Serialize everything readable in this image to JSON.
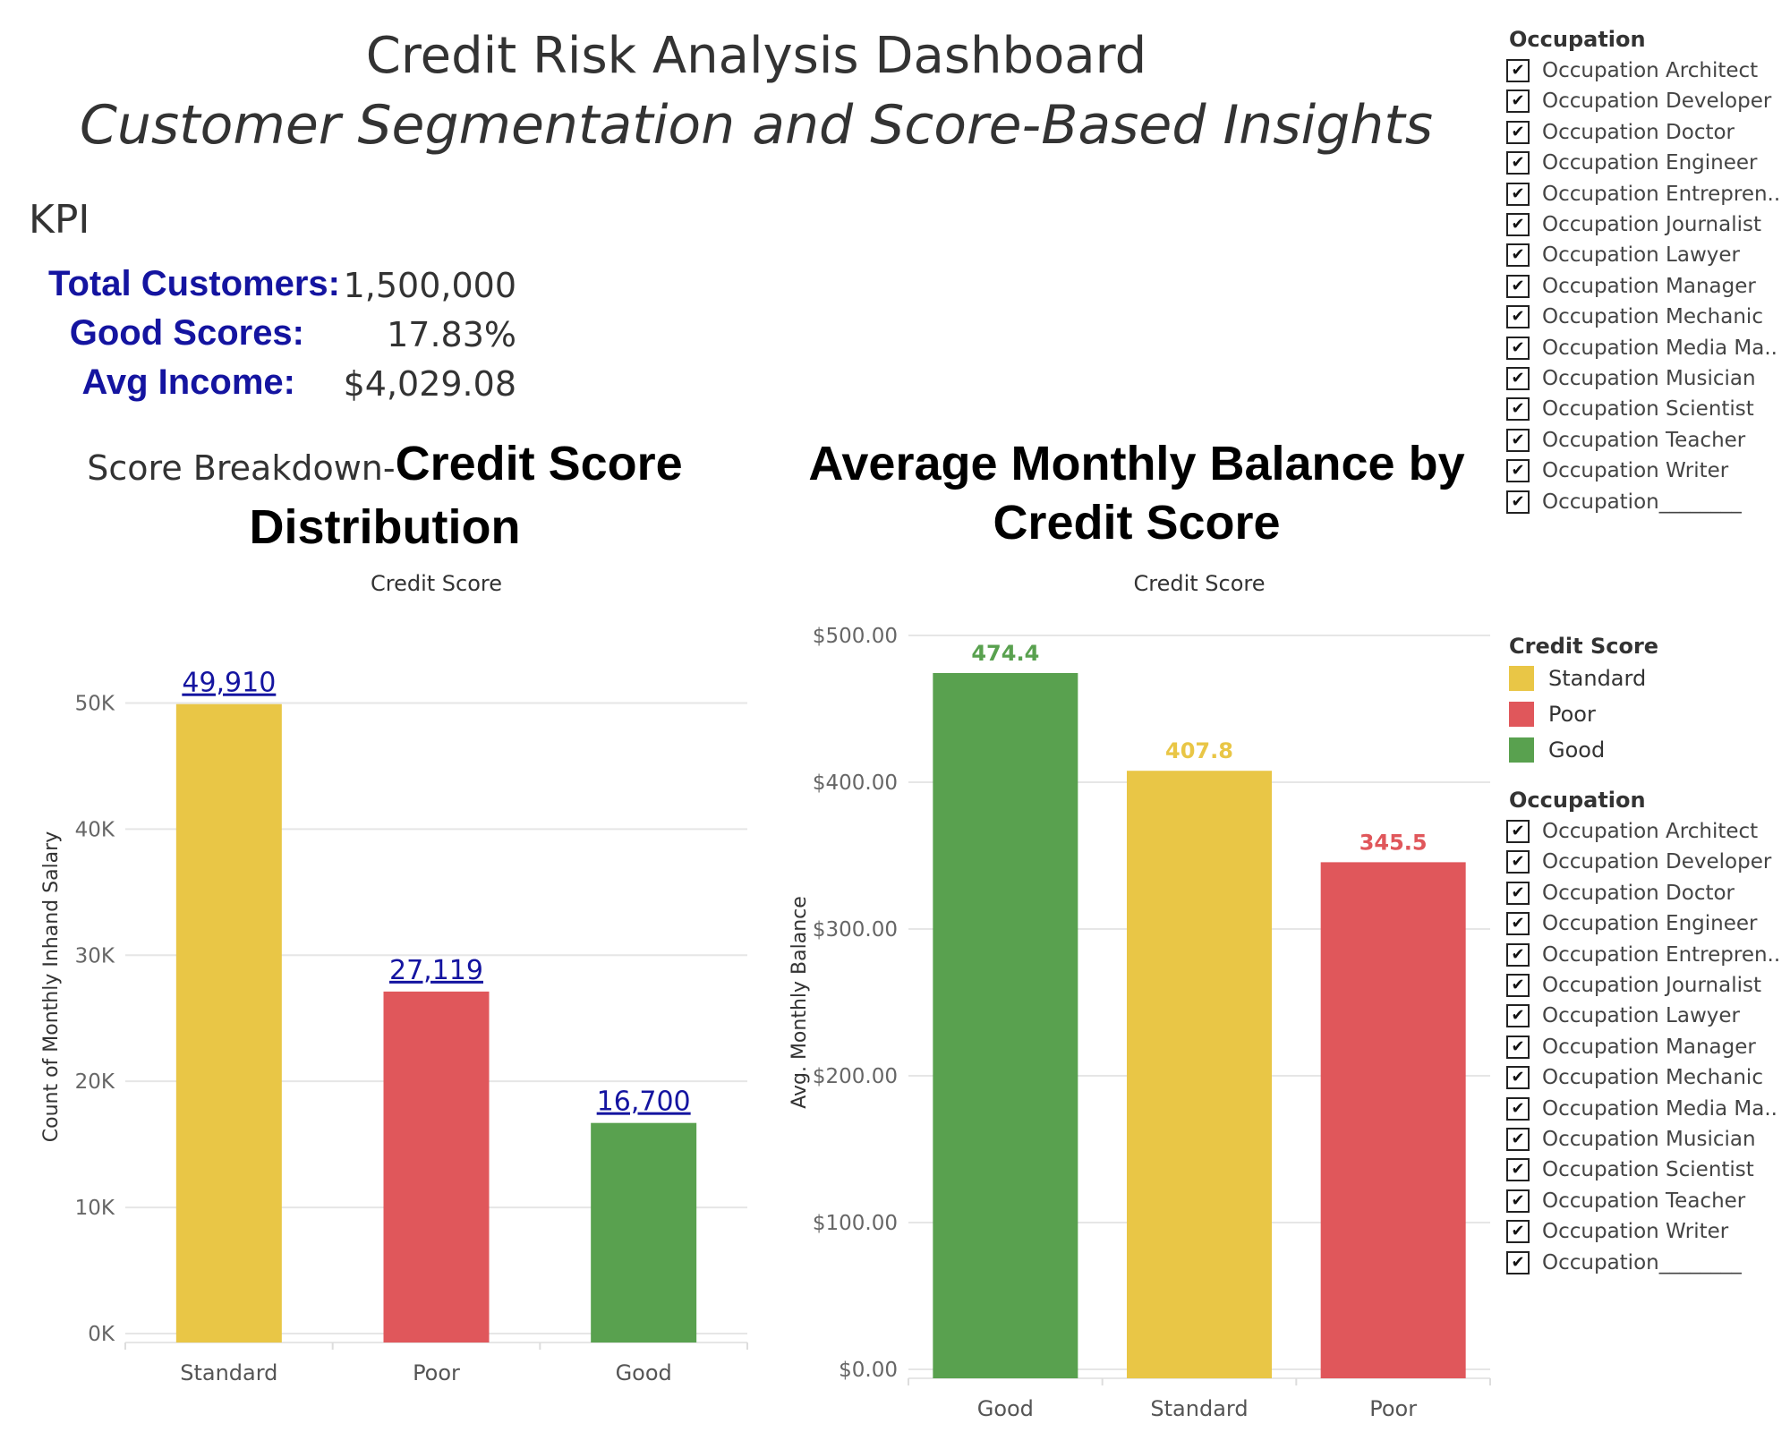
{
  "header": {
    "title": "Credit Risk Analysis Dashboard",
    "subtitle": "Customer Segmentation and Score-Based Insights"
  },
  "kpi": {
    "heading": "KPI",
    "items": [
      {
        "label": "Total Customers:",
        "value": "1,500,000"
      },
      {
        "label": "Good Scores:",
        "value": "17.83%"
      },
      {
        "label": "Avg Income:",
        "value": "$4,029.08"
      }
    ]
  },
  "colors": {
    "Standard": "#e9c646",
    "Poor": "#e0575b",
    "Good": "#59a14f",
    "data_label_link": "#1414a0"
  },
  "chart_data": [
    {
      "type": "bar",
      "title_prefix": "Score Breakdown-",
      "title": "Credit Score Distribution",
      "column_header": "Credit Score",
      "categories": [
        "Standard",
        "Poor",
        "Good"
      ],
      "values": [
        49910,
        27119,
        16700
      ],
      "value_labels": [
        "49,910",
        "27,119",
        "16,700"
      ],
      "ylabel": "Count of Monthly Inhand Salary",
      "ylim": [
        0,
        55000
      ],
      "yticks": [
        0,
        10000,
        20000,
        30000,
        40000,
        50000
      ],
      "ytick_labels": [
        "0K",
        "10K",
        "20K",
        "30K",
        "40K",
        "50K"
      ],
      "grid": true
    },
    {
      "type": "bar",
      "title": "Average Monthly Balance by Credit Score",
      "column_header": "Credit Score",
      "categories": [
        "Good",
        "Standard",
        "Poor"
      ],
      "values": [
        474.4,
        407.8,
        345.5
      ],
      "value_labels": [
        "474.4",
        "407.8",
        "345.5"
      ],
      "ylabel": "Avg. Monthly Balance",
      "ylim": [
        0,
        500
      ],
      "yticks": [
        0,
        100,
        200,
        300,
        400,
        500
      ],
      "ytick_labels": [
        "$0.00",
        "$100.00",
        "$200.00",
        "$300.00",
        "$400.00",
        "$500.00"
      ],
      "grid": true
    }
  ],
  "legend": {
    "title": "Credit Score",
    "items": [
      "Standard",
      "Poor",
      "Good"
    ]
  },
  "filters": [
    {
      "title": "Occupation",
      "items": [
        "Occupation Architect",
        "Occupation Developer",
        "Occupation Doctor",
        "Occupation Engineer",
        "Occupation Entrepren..",
        "Occupation Journalist",
        "Occupation Lawyer",
        "Occupation Manager",
        "Occupation Mechanic",
        "Occupation Media Ma..",
        "Occupation Musician",
        "Occupation Scientist",
        "Occupation Teacher",
        "Occupation Writer",
        "Occupation________"
      ]
    },
    {
      "title": "Occupation",
      "items": [
        "Occupation Architect",
        "Occupation Developer",
        "Occupation Doctor",
        "Occupation Engineer",
        "Occupation Entrepren..",
        "Occupation Journalist",
        "Occupation Lawyer",
        "Occupation Manager",
        "Occupation Mechanic",
        "Occupation Media Ma..",
        "Occupation Musician",
        "Occupation Scientist",
        "Occupation Teacher",
        "Occupation Writer",
        "Occupation________"
      ]
    }
  ]
}
